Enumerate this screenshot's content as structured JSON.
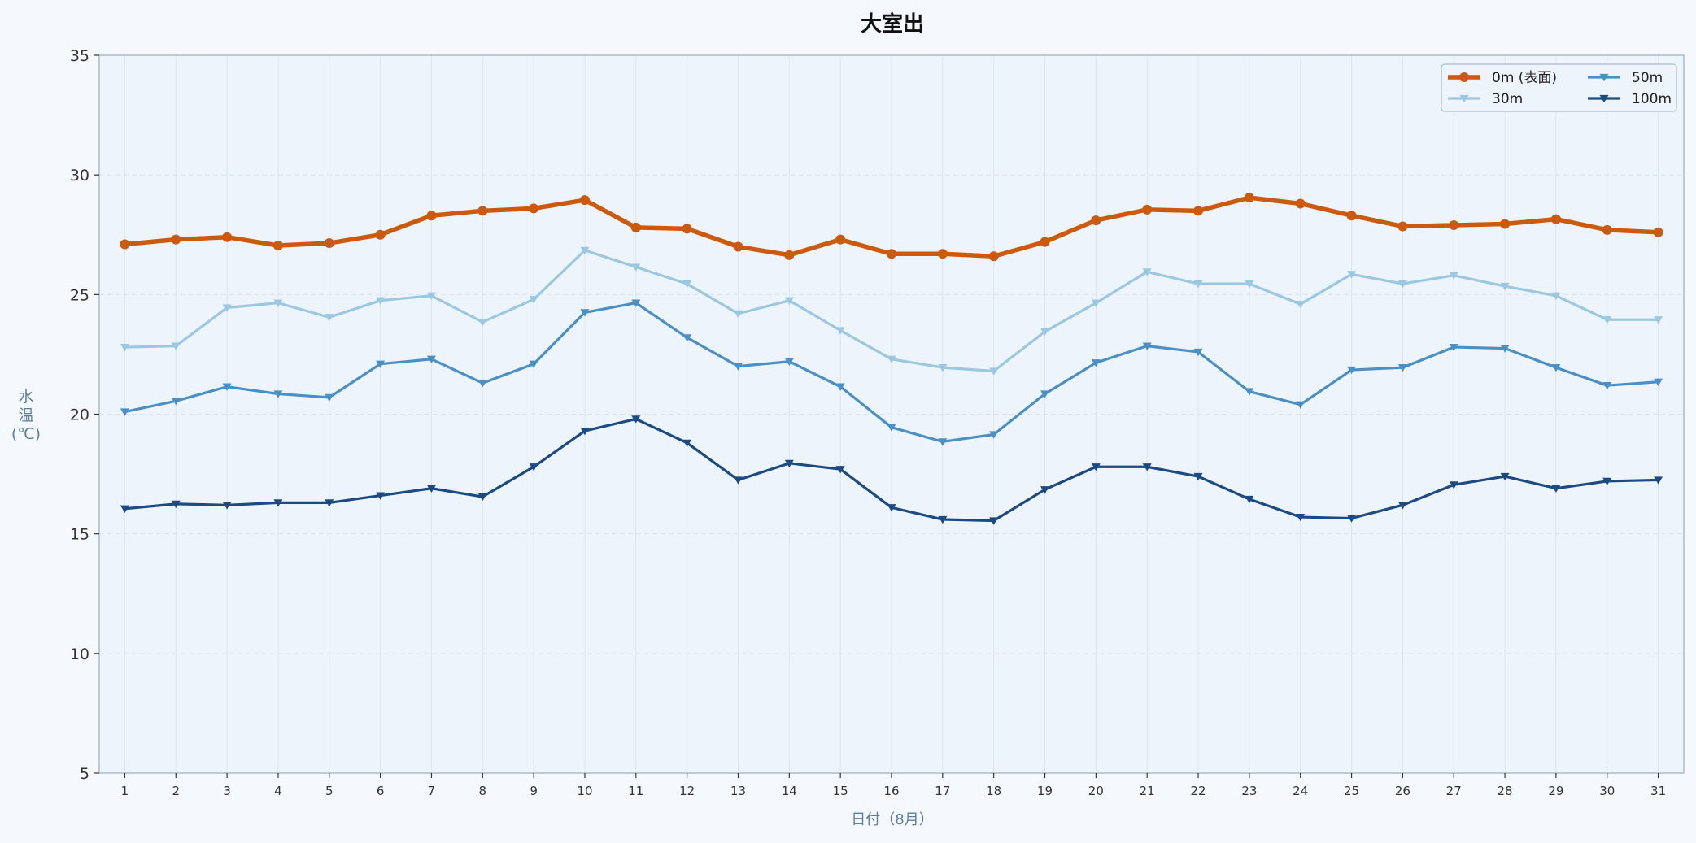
{
  "chart_data": {
    "type": "line",
    "title": "大室出",
    "xlabel": "日付（8月）",
    "ylabel": "水温(℃)",
    "ylabel_chars": [
      "水",
      "温",
      "(℃)"
    ],
    "ylim": [
      5,
      35
    ],
    "yticks": [
      5,
      10,
      15,
      20,
      25,
      30,
      35
    ],
    "xlim": [
      0.5,
      31.5
    ],
    "x": [
      1,
      2,
      3,
      4,
      5,
      6,
      7,
      8,
      9,
      10,
      11,
      12,
      13,
      14,
      15,
      16,
      17,
      18,
      19,
      20,
      21,
      22,
      23,
      24,
      25,
      26,
      27,
      28,
      29,
      30,
      31
    ],
    "grid": true,
    "legend_position": "top-right",
    "series": [
      {
        "name": "0m (表面)",
        "color": "#cc5a0e",
        "marker": "circle",
        "values": [
          27.1,
          27.3,
          27.4,
          27.05,
          27.15,
          27.5,
          28.3,
          28.5,
          28.6,
          28.95,
          27.8,
          27.75,
          27.0,
          26.65,
          27.3,
          26.7,
          26.7,
          26.6,
          27.2,
          28.1,
          28.55,
          28.5,
          29.05,
          28.8,
          28.3,
          27.85,
          27.9,
          27.95,
          28.15,
          27.7,
          27.6
        ]
      },
      {
        "name": "30m",
        "color": "#9ac8e0",
        "marker": "triangle-down",
        "values": [
          22.8,
          22.85,
          24.45,
          24.65,
          24.05,
          24.75,
          24.95,
          23.85,
          24.8,
          26.85,
          26.15,
          25.45,
          24.2,
          24.75,
          23.5,
          22.3,
          21.95,
          21.8,
          23.45,
          24.65,
          25.95,
          25.45,
          25.45,
          24.6,
          25.85,
          25.45,
          25.8,
          25.35,
          24.95,
          23.95,
          23.95
        ]
      },
      {
        "name": "50m",
        "color": "#4a90c4",
        "marker": "triangle-down",
        "values": [
          20.1,
          20.55,
          21.15,
          20.85,
          20.7,
          22.1,
          22.3,
          21.3,
          22.1,
          24.25,
          24.65,
          23.2,
          22.0,
          22.2,
          21.15,
          19.45,
          18.85,
          19.15,
          20.85,
          22.15,
          22.85,
          22.6,
          20.95,
          20.4,
          21.85,
          21.95,
          22.8,
          22.75,
          21.95,
          21.2,
          21.35
        ]
      },
      {
        "name": "100m",
        "color": "#1c4a82",
        "marker": "triangle-down",
        "values": [
          16.05,
          16.25,
          16.2,
          16.3,
          16.3,
          16.6,
          16.9,
          16.55,
          17.8,
          19.3,
          19.8,
          18.8,
          17.25,
          17.95,
          17.7,
          16.1,
          15.6,
          15.55,
          16.85,
          17.8,
          17.8,
          17.4,
          16.45,
          15.7,
          15.65,
          16.2,
          17.05,
          17.4,
          16.9,
          17.2,
          17.25
        ]
      }
    ]
  }
}
